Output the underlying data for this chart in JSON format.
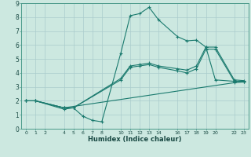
{
  "title": "",
  "xlabel": "Humidex (Indice chaleur)",
  "ylabel": "",
  "background_color": "#cce8e0",
  "line_color": "#1a7a6e",
  "grid_color": "#aacccc",
  "xlim": [
    -0.5,
    23.5
  ],
  "ylim": [
    0,
    9
  ],
  "xticks": [
    0,
    1,
    2,
    4,
    5,
    6,
    7,
    8,
    10,
    11,
    12,
    13,
    14,
    16,
    17,
    18,
    19,
    20,
    22,
    23
  ],
  "yticks": [
    0,
    1,
    2,
    3,
    4,
    5,
    6,
    7,
    8,
    9
  ],
  "lines": [
    {
      "x": [
        0,
        1,
        4,
        5,
        6,
        7,
        8,
        10,
        11,
        12,
        13,
        14,
        16,
        17,
        18,
        19,
        20,
        22,
        23
      ],
      "y": [
        2,
        2,
        1.4,
        1.5,
        0.9,
        0.6,
        0.5,
        5.4,
        8.1,
        8.25,
        8.7,
        7.8,
        6.6,
        6.3,
        6.35,
        5.85,
        3.5,
        3.4,
        3.4
      ]
    },
    {
      "x": [
        0,
        1,
        4,
        5,
        10,
        11,
        12,
        13,
        14,
        16,
        17,
        18,
        19,
        20,
        22,
        23
      ],
      "y": [
        2,
        2,
        1.5,
        1.5,
        3.6,
        4.5,
        4.6,
        4.7,
        4.5,
        4.3,
        4.2,
        4.5,
        5.85,
        5.85,
        3.5,
        3.45
      ]
    },
    {
      "x": [
        0,
        1,
        4,
        5,
        10,
        11,
        12,
        13,
        14,
        16,
        17,
        18,
        19,
        20,
        22,
        23
      ],
      "y": [
        2,
        2,
        1.5,
        1.5,
        3.5,
        4.4,
        4.5,
        4.6,
        4.4,
        4.15,
        4.0,
        4.3,
        5.7,
        5.7,
        3.4,
        3.35
      ]
    },
    {
      "x": [
        0,
        1,
        4,
        22,
        23
      ],
      "y": [
        2,
        2,
        1.5,
        3.3,
        3.35
      ]
    }
  ]
}
